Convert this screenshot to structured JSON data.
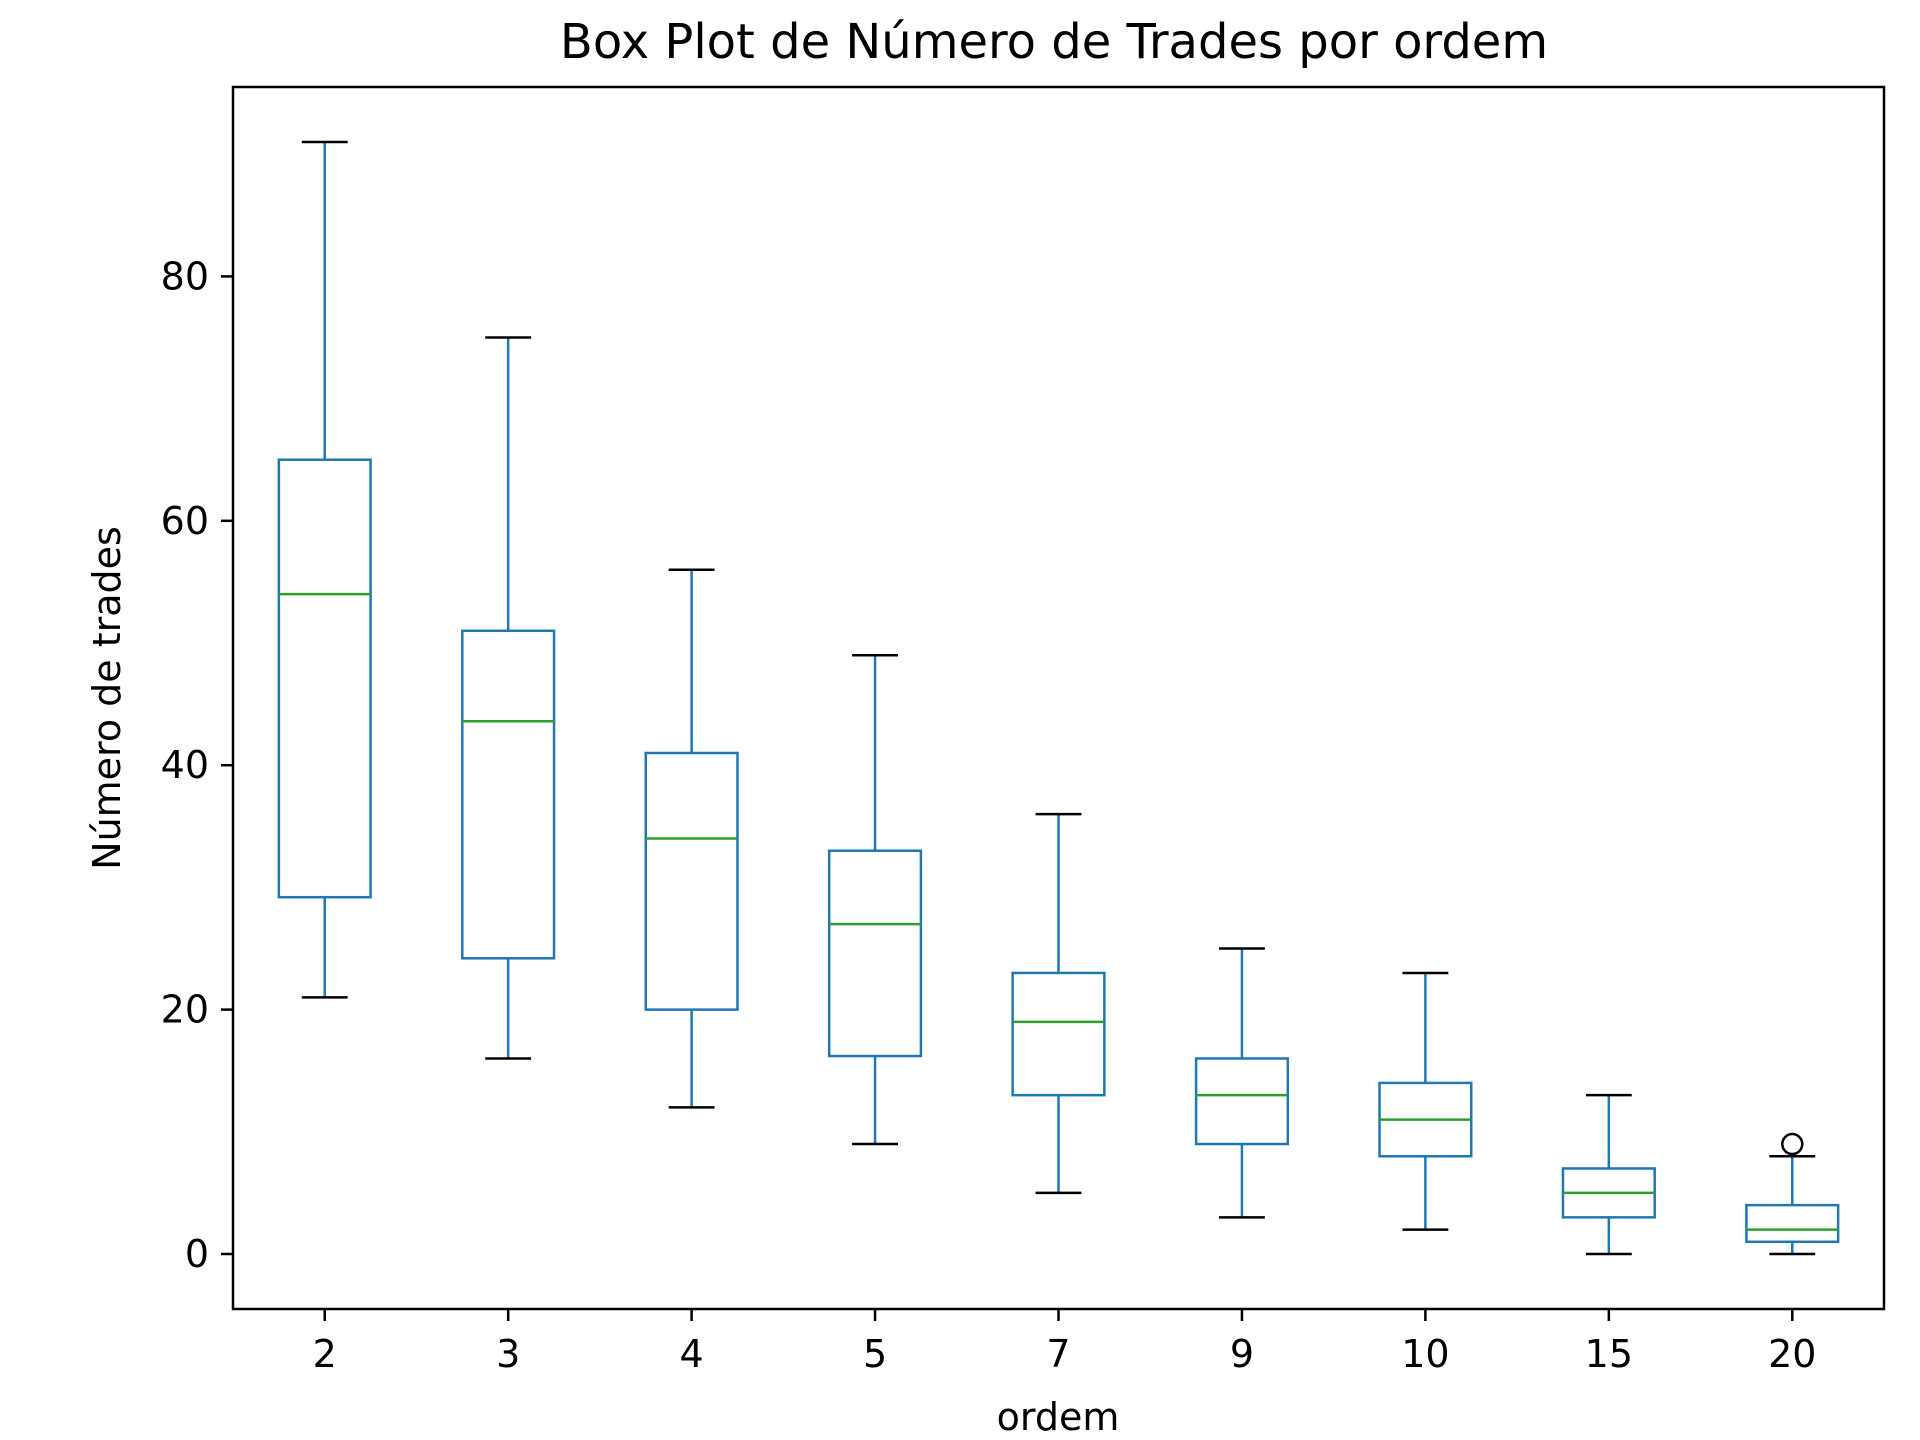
{
  "chart_data": {
    "type": "box",
    "title": "Box Plot de Número de Trades por ordem",
    "xlabel": "ordem",
    "ylabel": "Número de trades",
    "ylim": [
      -4.5,
      95.5
    ],
    "yticks": [
      0,
      20,
      40,
      60,
      80
    ],
    "grid": false,
    "colors": {
      "box": "#1f77b4",
      "median": "#2ca02c",
      "cap": "#000000",
      "flier": "#000000"
    },
    "categories": [
      "2",
      "3",
      "4",
      "5",
      "7",
      "9",
      "10",
      "15",
      "20"
    ],
    "boxes": [
      {
        "category": "2",
        "whisker_low": 21,
        "q1": 29.2,
        "median": 54,
        "q3": 65,
        "whisker_high": 91,
        "fliers": []
      },
      {
        "category": "3",
        "whisker_low": 16,
        "q1": 24.2,
        "median": 43.6,
        "q3": 51,
        "whisker_high": 75,
        "fliers": []
      },
      {
        "category": "4",
        "whisker_low": 12,
        "q1": 20,
        "median": 34,
        "q3": 41,
        "whisker_high": 56,
        "fliers": []
      },
      {
        "category": "5",
        "whisker_low": 9,
        "q1": 16.2,
        "median": 27,
        "q3": 33,
        "whisker_high": 49,
        "fliers": []
      },
      {
        "category": "7",
        "whisker_low": 5,
        "q1": 13,
        "median": 19,
        "q3": 23,
        "whisker_high": 36,
        "fliers": []
      },
      {
        "category": "9",
        "whisker_low": 3,
        "q1": 9,
        "median": 13,
        "q3": 16,
        "whisker_high": 25,
        "fliers": []
      },
      {
        "category": "10",
        "whisker_low": 2,
        "q1": 8,
        "median": 11,
        "q3": 14,
        "whisker_high": 23,
        "fliers": []
      },
      {
        "category": "15",
        "whisker_low": 0,
        "q1": 3,
        "median": 5,
        "q3": 7,
        "whisker_high": 13,
        "fliers": []
      },
      {
        "category": "20",
        "whisker_low": 0,
        "q1": 1,
        "median": 2,
        "q3": 4,
        "whisker_high": 8,
        "fliers": [
          9
        ]
      }
    ]
  }
}
